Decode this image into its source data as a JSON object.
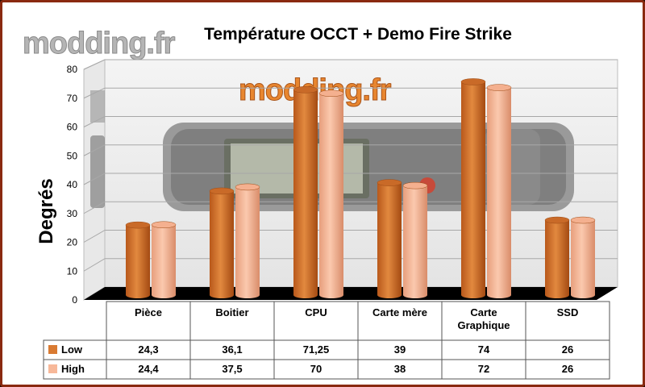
{
  "watermark": "modding.fr",
  "chart_data": {
    "type": "bar",
    "title": "Température OCCT + Demo Fire Strike",
    "xlabel": "",
    "ylabel": "Degrés",
    "ylim": [
      0,
      80
    ],
    "yticks": [
      0,
      10,
      20,
      30,
      40,
      50,
      60,
      70,
      80
    ],
    "categories": [
      "Pièce",
      "Boitier",
      "CPU",
      "Carte mère",
      "Carte Graphique",
      "SSD"
    ],
    "series": [
      {
        "name": "Low",
        "values": [
          24.3,
          36.1,
          71.25,
          39,
          74,
          26
        ],
        "labels": [
          "24,3",
          "36,1",
          "71,25",
          "39",
          "74",
          "26"
        ],
        "color": "#d97a32"
      },
      {
        "name": "High",
        "values": [
          24.4,
          37.5,
          70,
          38,
          72,
          26
        ],
        "labels": [
          "24,4",
          "37,5",
          "70",
          "38",
          "72",
          "26"
        ],
        "color": "#f7b899"
      }
    ],
    "grid": true,
    "legend": "data-table"
  }
}
